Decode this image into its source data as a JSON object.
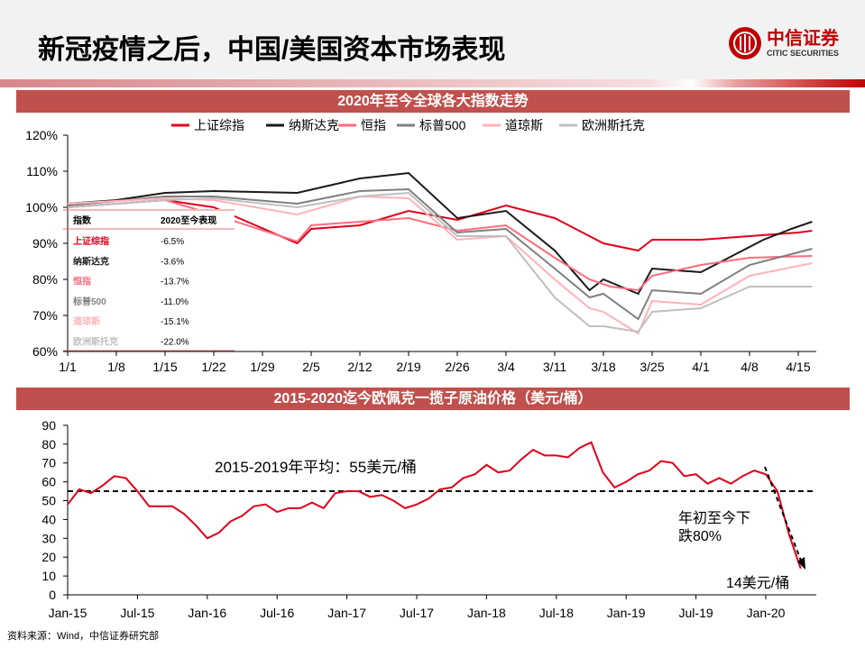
{
  "header": {
    "title": "新冠疫情之后，中国/美国资本市场表现",
    "logo_cn": "中信证券",
    "logo_en": "CITIC SECURITIES"
  },
  "source": "资料来源：Wind，中信证券研究部",
  "chart_data": [
    {
      "type": "line",
      "title": "2020年至今全球各大指数走势",
      "ylim": [
        60,
        120
      ],
      "yticks": [
        "60%",
        "70%",
        "80%",
        "90%",
        "100%",
        "110%",
        "120%"
      ],
      "xticks": [
        "1/1",
        "1/8",
        "1/15",
        "1/22",
        "1/29",
        "2/5",
        "2/12",
        "2/19",
        "2/26",
        "3/4",
        "3/11",
        "3/18",
        "3/25",
        "4/1",
        "4/8",
        "4/15"
      ],
      "legend": "top",
      "series": [
        {
          "name": "上证综指",
          "color": "#e0001b",
          "points": [
            [
              "1/1",
              100
            ],
            [
              "1/8",
              101
            ],
            [
              "1/15",
              102
            ],
            [
              "1/22",
              100
            ],
            [
              "2/3",
              90
            ],
            [
              "2/5",
              94
            ],
            [
              "2/12",
              95
            ],
            [
              "2/19",
              99
            ],
            [
              "2/26",
              96.5
            ],
            [
              "3/4",
              100.5
            ],
            [
              "3/11",
              97
            ],
            [
              "3/18",
              90
            ],
            [
              "3/23",
              88
            ],
            [
              "3/25",
              91
            ],
            [
              "4/1",
              91
            ],
            [
              "4/8",
              92
            ],
            [
              "4/15",
              93
            ],
            [
              "4/17",
              93.5
            ]
          ]
        },
        {
          "name": "纳斯达克",
          "color": "#1a1a1a",
          "points": [
            [
              "1/1",
              101
            ],
            [
              "1/8",
              102
            ],
            [
              "1/15",
              104
            ],
            [
              "1/22",
              104.5
            ],
            [
              "2/3",
              104
            ],
            [
              "2/12",
              108
            ],
            [
              "2/19",
              109.5
            ],
            [
              "2/26",
              97
            ],
            [
              "3/4",
              99
            ],
            [
              "3/11",
              88
            ],
            [
              "3/16",
              77
            ],
            [
              "3/18",
              80
            ],
            [
              "3/23",
              76
            ],
            [
              "3/25",
              83
            ],
            [
              "4/1",
              82
            ],
            [
              "4/8",
              89
            ],
            [
              "4/10",
              91
            ],
            [
              "4/14",
              94
            ],
            [
              "4/17",
              96
            ]
          ]
        },
        {
          "name": "恒指",
          "color": "#ff6b7f",
          "points": [
            [
              "1/1",
              100
            ],
            [
              "1/15",
              102
            ],
            [
              "1/22",
              98
            ],
            [
              "2/3",
              90.5
            ],
            [
              "2/5",
              95
            ],
            [
              "2/19",
              97
            ],
            [
              "2/26",
              93.5
            ],
            [
              "3/4",
              95
            ],
            [
              "3/11",
              86
            ],
            [
              "3/16",
              80
            ],
            [
              "3/19",
              78
            ],
            [
              "3/23",
              77
            ],
            [
              "3/25",
              81
            ],
            [
              "4/1",
              84
            ],
            [
              "4/8",
              86
            ],
            [
              "4/17",
              86.5
            ]
          ]
        },
        {
          "name": "标普500",
          "color": "#7f7f7f",
          "points": [
            [
              "1/1",
              100.5
            ],
            [
              "1/15",
              103
            ],
            [
              "1/22",
              103
            ],
            [
              "2/3",
              101
            ],
            [
              "2/12",
              104.5
            ],
            [
              "2/19",
              105
            ],
            [
              "2/26",
              93
            ],
            [
              "3/4",
              94
            ],
            [
              "3/11",
              83
            ],
            [
              "3/16",
              75
            ],
            [
              "3/18",
              76
            ],
            [
              "3/23",
              69
            ],
            [
              "3/25",
              77
            ],
            [
              "4/1",
              76
            ],
            [
              "4/8",
              84
            ],
            [
              "4/17",
              88.5
            ]
          ]
        },
        {
          "name": "道琼斯",
          "color": "#ffb3b8",
          "points": [
            [
              "1/1",
              101
            ],
            [
              "1/15",
              102.5
            ],
            [
              "1/22",
              102
            ],
            [
              "2/3",
              98
            ],
            [
              "2/12",
              103
            ],
            [
              "2/19",
              102.5
            ],
            [
              "2/26",
              91
            ],
            [
              "3/4",
              92
            ],
            [
              "3/11",
              80
            ],
            [
              "3/16",
              72
            ],
            [
              "3/18",
              71
            ],
            [
              "3/23",
              65
            ],
            [
              "3/25",
              74
            ],
            [
              "4/1",
              73
            ],
            [
              "4/8",
              81
            ],
            [
              "4/17",
              84.5
            ]
          ]
        },
        {
          "name": "欧洲斯托克",
          "color": "#bfbfbf",
          "points": [
            [
              "1/1",
              100
            ],
            [
              "1/15",
              102
            ],
            [
              "1/22",
              102.5
            ],
            [
              "2/3",
              100
            ],
            [
              "2/12",
              103
            ],
            [
              "2/19",
              104
            ],
            [
              "2/26",
              92
            ],
            [
              "3/4",
              92
            ],
            [
              "3/11",
              75
            ],
            [
              "3/16",
              67
            ],
            [
              "3/18",
              67
            ],
            [
              "3/23",
              65.5
            ],
            [
              "3/25",
              71
            ],
            [
              "4/1",
              72
            ],
            [
              "4/8",
              78
            ],
            [
              "4/17",
              78
            ]
          ]
        }
      ],
      "table": {
        "headers": [
          "指数",
          "2020至今表现"
        ],
        "rows": [
          [
            "上证综指",
            "-6.5%"
          ],
          [
            "纳斯达克",
            "-3.6%"
          ],
          [
            "恒指",
            "-13.7%"
          ],
          [
            "标普500",
            "-11.0%"
          ],
          [
            "道琼斯",
            "-15.1%"
          ],
          [
            "欧洲斯托克",
            "-22.0%"
          ]
        ]
      }
    },
    {
      "type": "line",
      "title": "2015-2020迄今欧佩克一揽子原油价格（美元/桶）",
      "ylim": [
        0,
        90
      ],
      "yticks": [
        "0",
        "10",
        "20",
        "30",
        "40",
        "50",
        "60",
        "70",
        "80",
        "90"
      ],
      "xticks": [
        "Jan-15",
        "Jul-15",
        "Jan-16",
        "Jul-16",
        "Jan-17",
        "Jul-17",
        "Jan-18",
        "Jul-18",
        "Jan-19",
        "Jul-19",
        "Jan-20"
      ],
      "series": [
        {
          "color": "#e0001b",
          "start": "2015-01",
          "monthly": [
            48,
            56,
            54,
            58,
            63,
            62,
            55,
            47,
            47,
            47,
            43,
            37,
            30,
            33,
            39,
            42,
            47,
            48,
            44,
            46,
            46,
            49,
            46,
            54,
            55,
            55,
            52,
            53,
            50,
            46,
            48,
            51,
            56,
            57,
            62,
            64,
            69,
            65,
            66,
            72,
            77,
            74,
            74,
            73,
            78,
            81,
            65,
            57,
            60,
            64,
            66,
            71,
            70,
            63,
            64,
            59,
            62,
            59,
            63,
            66,
            64,
            55,
            32,
            14
          ]
        }
      ],
      "reference_line": {
        "value": 55,
        "label": "2015-2019年平均：55美元/桶"
      },
      "annotations": [
        "年初至今下",
        "跌80%",
        "14美元/桶"
      ]
    }
  ]
}
